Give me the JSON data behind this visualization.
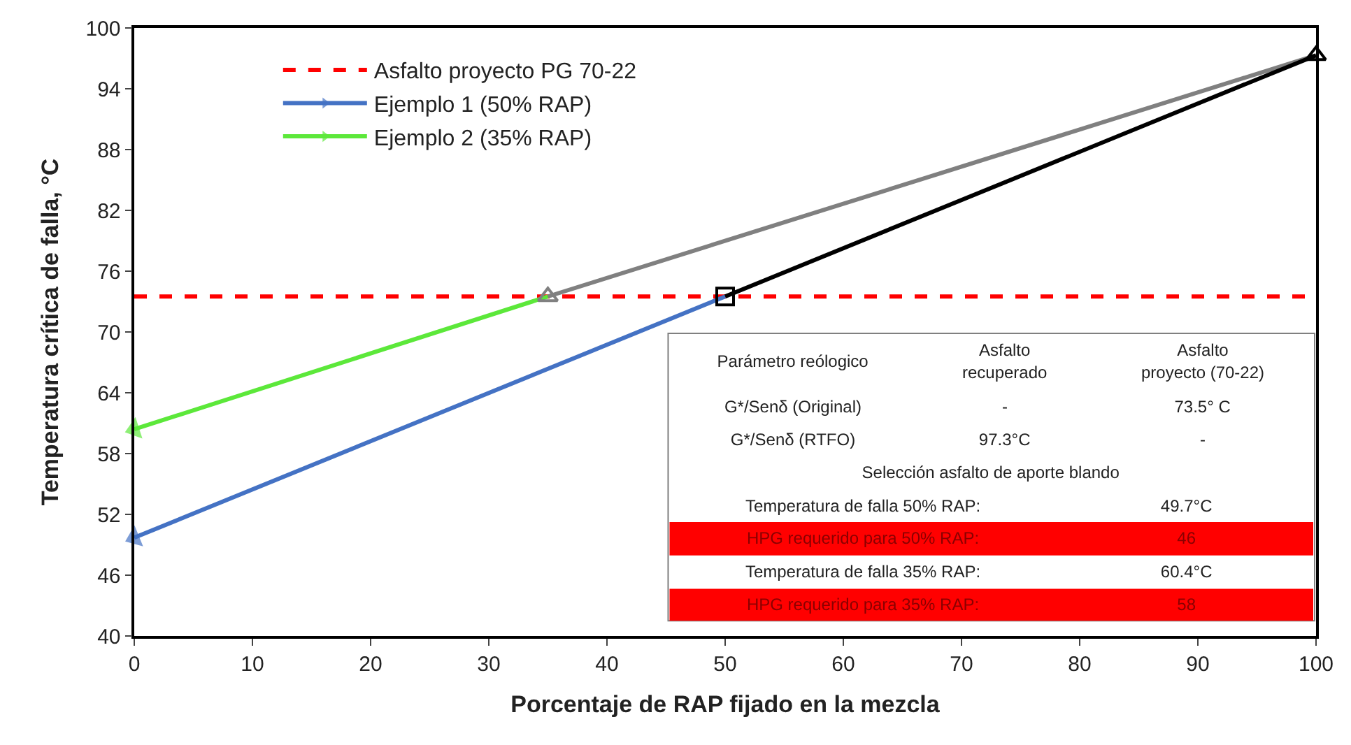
{
  "chart_data": {
    "type": "line",
    "xlabel": "Porcentaje de RAP fijado en la mezcla",
    "ylabel": "Temperatura crítica de falla, °C",
    "xlim": [
      0,
      100
    ],
    "xticks": [
      0,
      10,
      20,
      30,
      40,
      50,
      60,
      70,
      80,
      90,
      100
    ],
    "ylim": [
      40,
      100
    ],
    "yticks": [
      40,
      46,
      52,
      58,
      64,
      70,
      76,
      82,
      88,
      94,
      100
    ],
    "grid": false,
    "legend": "top left",
    "line_style": "solid",
    "series": [
      {
        "name": "Asfalto proyecto PG 70-22",
        "color": "#ff0000",
        "x": [
          0,
          100
        ],
        "values": [
          73.5,
          73.5
        ],
        "line_style": "dashed"
      },
      {
        "color": "#808080",
        "x": [
          35,
          100
        ],
        "values": [
          73.5,
          97.3
        ]
      },
      {
        "color": "#000000",
        "x": [
          50,
          100
        ],
        "values": [
          73.5,
          97.3
        ]
      },
      {
        "name": "Ejemplo 1 (50% RAP)",
        "color": "#4472c4",
        "x": [
          50,
          0
        ],
        "values": [
          73.5,
          49.7
        ]
      },
      {
        "name": "Ejemplo 2 (35% RAP)",
        "color": "#5ce83a",
        "x": [
          35,
          0
        ],
        "values": [
          73.5,
          60.4
        ]
      },
      {
        "type": "scatter",
        "color": "#808080",
        "x": [
          35
        ],
        "values": [
          73.5
        ],
        "marker": "triangle"
      },
      {
        "type": "scatter",
        "color": "#000000",
        "x": [
          50
        ],
        "values": [
          73.5
        ],
        "marker": "square"
      },
      {
        "type": "scatter",
        "color": "#000000",
        "x": [
          100
        ],
        "values": [
          97.3
        ],
        "marker": "triangle"
      }
    ],
    "annotations": [
      "Parámetro reólogico",
      "Asfalto recuperado",
      "Asfalto proyecto (70-22)",
      "G*/Senδ (Original)",
      "-",
      "73.5° C",
      "G*/Senδ (RTFO)",
      "97.3°C",
      "-",
      "Selección asfalto de aporte blando",
      "Temperatura de falla 50% RAP:",
      "49.7°C",
      "HPG requerido para 50% RAP:",
      "46",
      "Temperatura de falla 35% RAP:",
      "60.4°C",
      "HPG requerido para 35% RAP:",
      "58"
    ]
  }
}
